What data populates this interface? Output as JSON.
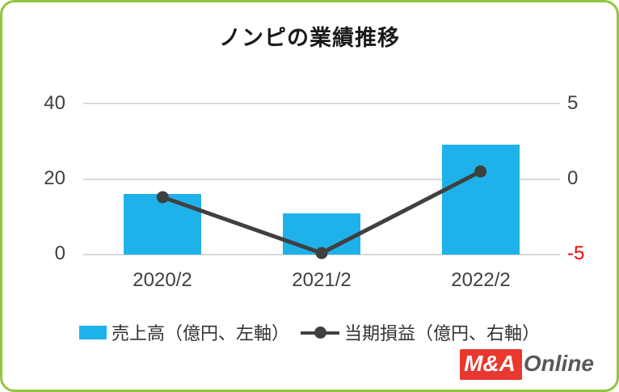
{
  "chart_data": {
    "type": "bar",
    "overlay": "line",
    "title": "ノンピの業績推移",
    "categories": [
      "2020/2",
      "2021/2",
      "2022/2"
    ],
    "series": [
      {
        "name": "売上高（億円、左軸）",
        "chart_type": "bar",
        "axis": "left",
        "color": "#1FB2EA",
        "values": [
          16,
          11,
          29
        ]
      },
      {
        "name": "当期損益（億円、右軸）",
        "chart_type": "line",
        "axis": "right",
        "color": "#404040",
        "values": [
          -1.2,
          -4.9,
          0.5
        ]
      }
    ],
    "left_axis": {
      "min": 0,
      "max": 40,
      "ticks": [
        40,
        20,
        0
      ]
    },
    "right_axis": {
      "min": -5,
      "max": 5,
      "ticks": [
        5,
        0,
        -5
      ],
      "negative_tick_color": "#FF0000"
    },
    "grid": true,
    "gridline_color": "#d9d9d9",
    "legend_position": "bottom"
  },
  "logo": {
    "prefix": "M&A",
    "suffix": "Online",
    "red": "#E8382F",
    "gray": "#595959"
  },
  "frame": {
    "border_color": "#8FC63F"
  }
}
